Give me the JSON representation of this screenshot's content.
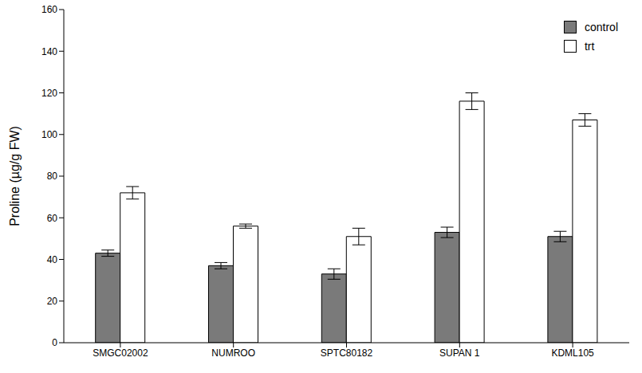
{
  "chart_data": {
    "type": "bar",
    "y_label": "Proline (µg/g FW)",
    "categories": [
      "SMGC02002",
      "NUMROO",
      "SPTC80182",
      "SUPAN 1",
      "KDML105"
    ],
    "series": [
      {
        "name": "control",
        "color": "#7a7a7a",
        "values": [
          43,
          37,
          33,
          53,
          51
        ],
        "errors": [
          1.5,
          1.5,
          2.5,
          2.5,
          2.5
        ]
      },
      {
        "name": "trt",
        "color": "#ffffff",
        "values": [
          72,
          56,
          51,
          116,
          107
        ],
        "errors": [
          3,
          1,
          4,
          4,
          3
        ]
      }
    ],
    "ylim": [
      0,
      160
    ],
    "yticks": [
      0,
      20,
      40,
      60,
      80,
      100,
      120,
      140,
      160
    ],
    "grid": false,
    "legend": "upper right"
  }
}
